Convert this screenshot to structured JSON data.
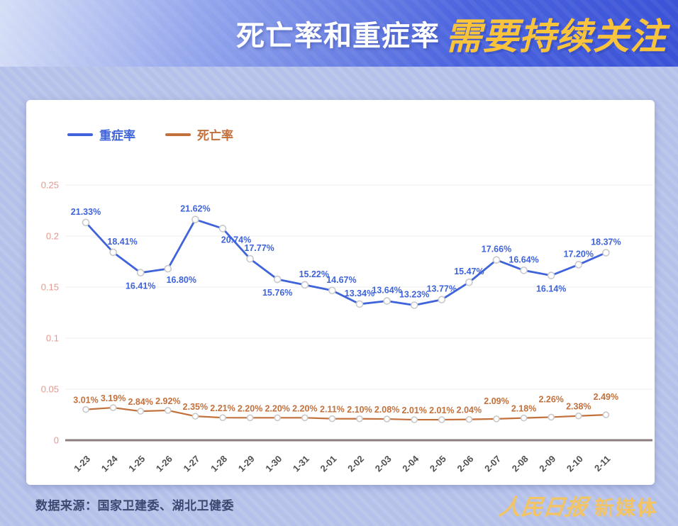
{
  "header": {
    "title_normal": "死亡率和重症率",
    "title_highlight": "需要持续关注"
  },
  "chart_data": {
    "type": "line",
    "title": "死亡率和重症率需要持续关注",
    "categories": [
      "1-23",
      "1-24",
      "1-25",
      "1-26",
      "1-27",
      "1-28",
      "1-29",
      "1-30",
      "1-31",
      "2-01",
      "2-02",
      "2-03",
      "2-04",
      "2-05",
      "2-06",
      "2-07",
      "2-08",
      "2-09",
      "2-10",
      "2-11"
    ],
    "series": [
      {
        "name": "重症率",
        "color": "#3E63DA",
        "unit": "%",
        "values": [
          21.33,
          18.41,
          16.41,
          16.8,
          21.62,
          20.74,
          17.77,
          15.76,
          15.22,
          14.67,
          13.34,
          13.64,
          13.23,
          13.77,
          15.47,
          17.66,
          16.64,
          16.14,
          17.2,
          18.37
        ]
      },
      {
        "name": "死亡率",
        "color": "#C2703C",
        "unit": "%",
        "values": [
          3.01,
          3.19,
          2.84,
          2.92,
          2.35,
          2.21,
          2.2,
          2.2,
          2.2,
          2.11,
          2.1,
          2.08,
          2.01,
          2.01,
          2.04,
          2.09,
          2.18,
          2.26,
          2.38,
          2.49
        ]
      }
    ],
    "yticks": [
      0,
      0.05,
      0.1,
      0.15,
      0.2,
      0.25
    ],
    "ylim": [
      0,
      0.25
    ],
    "grid": true,
    "legend_position": "top-left",
    "value_format": "percent_two_decimals"
  },
  "footer": {
    "source": "数据来源：国家卫建委、湖北卫健委",
    "brand_script": "人民日报",
    "brand_suffix": "新媒体"
  },
  "colors": {
    "banner_blue": "#3A52D6",
    "banner_light": "#D6DEF6",
    "title_highlight_yellow": "#FAC33C",
    "page_background": "#B5C1EA",
    "severe_line": "#3E63DA",
    "death_line": "#C2703C",
    "y_tick_label": "#E7978C",
    "x_tick_label": "#4F4F4F",
    "axis_line": "#8C7E7E",
    "gridline": "#EDEDED",
    "marker_fill": "#FFFFFF",
    "brand_gold": "#F2C463"
  }
}
